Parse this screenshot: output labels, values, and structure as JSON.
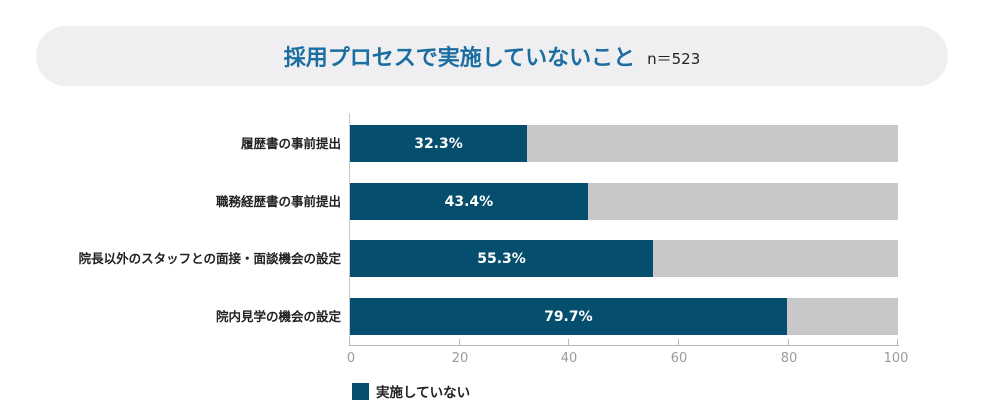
{
  "header": {
    "title": "採用プロセスで実施していないこと",
    "sample_size": "n＝523"
  },
  "colors": {
    "title": "#1a6fa0",
    "bar_fill": "#064e6d",
    "bar_remainder": "#c8c8ca",
    "title_background": "#efeef1"
  },
  "chart_data": {
    "type": "bar",
    "orientation": "horizontal",
    "stacked_to_100": true,
    "title": "採用プロセスで実施していないこと",
    "subtitle": "n＝523",
    "categories": [
      "履歴書の事前提出",
      "職務経歴書の事前提出",
      "院長以外のスタッフとの面接・面談機会の設定",
      "院内見学の機会の設定"
    ],
    "series": [
      {
        "name": "実施していない",
        "values": [
          32.3,
          43.4,
          55.3,
          79.7
        ],
        "color": "#064e6d"
      }
    ],
    "data_labels": [
      "32.3%",
      "43.4%",
      "55.3%",
      "79.7%"
    ],
    "xlabel": "",
    "ylabel": "",
    "xlim": [
      0,
      100
    ],
    "x_ticks": [
      "0",
      "20",
      "40",
      "60",
      "80",
      "100"
    ],
    "grid": false,
    "legend": {
      "position": "bottom-left",
      "entries": [
        "実施していない"
      ]
    }
  },
  "axis": {
    "ticks": [
      "0",
      "20",
      "40",
      "60",
      "80",
      "100"
    ]
  },
  "rows": [
    {
      "label": "履歴書の事前提出",
      "value": 32.3,
      "value_label": "32.3%"
    },
    {
      "label": "職務経歴書の事前提出",
      "value": 43.4,
      "value_label": "43.4%"
    },
    {
      "label": "院長以外のスタッフとの面接・面談機会の設定",
      "value": 55.3,
      "value_label": "55.3%"
    },
    {
      "label": "院内見学の機会の設定",
      "value": 79.7,
      "value_label": "79.7%"
    }
  ],
  "legend": {
    "label": "実施していない"
  }
}
